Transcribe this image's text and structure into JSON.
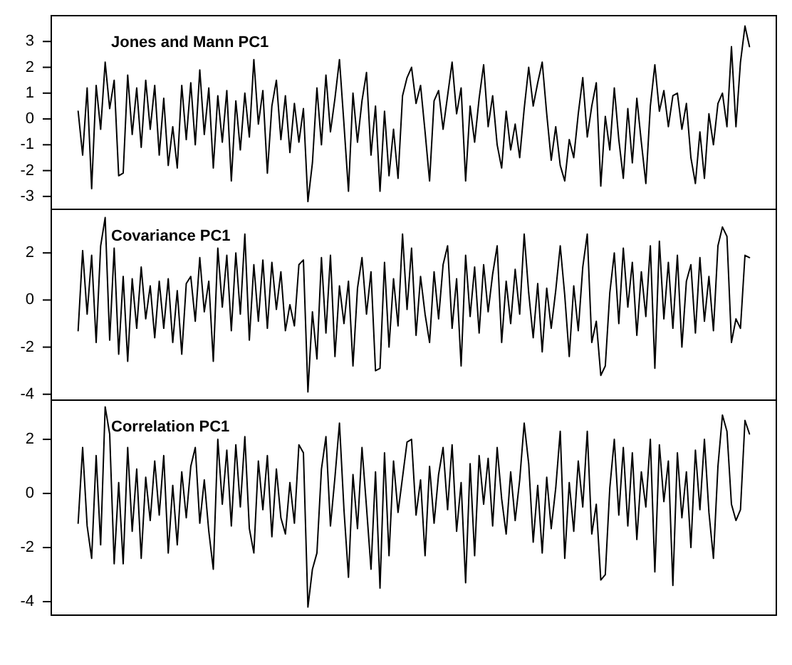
{
  "chart_data": [
    {
      "type": "line",
      "title": "Jones and Mann PC1",
      "tick_labels": "y",
      "ylim": [
        -3.5,
        4.0
      ],
      "yticks": [
        -3,
        -2,
        -1,
        0,
        1,
        2,
        3
      ],
      "categories": [
        null,
        null,
        null,
        null,
        null,
        null,
        null,
        null,
        null,
        null,
        null,
        null,
        null,
        null,
        null,
        null,
        null,
        null,
        null,
        null,
        null,
        null,
        null,
        null,
        null,
        null,
        null,
        null,
        null,
        null,
        null,
        null,
        null,
        null,
        null,
        null,
        null,
        null,
        null,
        null,
        null,
        null,
        null,
        null,
        null,
        null,
        null,
        null,
        null,
        null,
        null,
        null,
        null,
        null,
        null,
        null,
        null,
        null,
        null,
        null,
        null,
        null,
        null,
        null,
        null,
        null,
        null,
        null,
        null,
        null,
        null,
        null,
        null,
        null,
        null,
        null,
        null,
        null,
        null,
        null,
        null,
        null,
        null,
        null,
        null,
        null,
        null,
        null,
        null,
        null,
        null,
        null,
        null,
        null,
        null,
        null,
        null,
        null,
        null,
        null,
        null,
        null,
        null,
        null,
        null,
        null,
        null,
        null,
        null,
        null,
        null,
        null,
        null,
        null,
        null,
        null,
        null,
        null,
        null,
        null,
        null,
        null,
        null,
        null,
        null,
        null,
        null,
        null,
        null,
        null,
        null,
        null,
        null,
        null,
        null,
        null,
        null,
        null,
        null,
        null,
        null,
        null,
        null,
        null,
        null,
        null,
        null,
        null,
        null,
        null
      ],
      "series": [
        {
          "color": "#000000",
          "values": [
            0.3,
            -1.4,
            1.2,
            -2.7,
            1.3,
            -0.4,
            2.2,
            0.4,
            1.5,
            -2.2,
            -2.1,
            1.7,
            -0.6,
            1.2,
            -1.1,
            1.5,
            -0.4,
            1.3,
            -1.4,
            0.8,
            -1.8,
            -0.3,
            -1.9,
            1.3,
            -0.8,
            1.4,
            -1.0,
            1.9,
            -0.6,
            1.2,
            -1.9,
            0.9,
            -0.9,
            1.1,
            -2.4,
            0.7,
            -1.2,
            1.0,
            -0.7,
            2.3,
            -0.2,
            1.1,
            -2.1,
            0.5,
            1.5,
            -0.8,
            0.9,
            -1.3,
            0.6,
            -0.9,
            0.4,
            -3.2,
            -1.7,
            1.2,
            -1.0,
            1.7,
            -0.5,
            0.8,
            2.3,
            -0.2,
            -2.8,
            1.0,
            -0.9,
            0.7,
            1.8,
            -1.4,
            0.5,
            -2.8,
            0.3,
            -2.2,
            -0.4,
            -2.3,
            0.9,
            1.6,
            2.0,
            0.6,
            1.3,
            -0.5,
            -2.4,
            0.7,
            1.1,
            -0.4,
            0.9,
            2.2,
            0.2,
            1.2,
            -2.4,
            0.5,
            -0.9,
            0.8,
            2.1,
            -0.3,
            0.9,
            -1.0,
            -1.9,
            0.3,
            -1.2,
            -0.2,
            -1.5,
            0.4,
            2.0,
            0.5,
            1.4,
            2.2,
            0.2,
            -1.6,
            -0.3,
            -1.8,
            -2.4,
            -0.8,
            -1.5,
            0.2,
            1.6,
            -0.7,
            0.5,
            1.4,
            -2.6,
            0.1,
            -1.2,
            1.2,
            -0.8,
            -2.3,
            0.4,
            -1.7,
            0.8,
            -0.9,
            -2.5,
            0.5,
            2.1,
            0.3,
            1.1,
            -0.3,
            0.9,
            1.0,
            -0.4,
            0.6,
            -1.5,
            -2.5,
            -0.5,
            -2.3,
            0.2,
            -1.0,
            0.6,
            1.0,
            -0.3,
            2.8,
            -0.3,
            2.2,
            3.6,
            2.8
          ]
        }
      ]
    },
    {
      "type": "line",
      "title": "Covariance PC1",
      "tick_labels": "y",
      "ylim": [
        -4.25,
        3.85
      ],
      "yticks": [
        -4,
        -2,
        0,
        2
      ],
      "categories": [
        null,
        null,
        null,
        null,
        null,
        null,
        null,
        null,
        null,
        null,
        null,
        null,
        null,
        null,
        null,
        null,
        null,
        null,
        null,
        null,
        null,
        null,
        null,
        null,
        null,
        null,
        null,
        null,
        null,
        null,
        null,
        null,
        null,
        null,
        null,
        null,
        null,
        null,
        null,
        null,
        null,
        null,
        null,
        null,
        null,
        null,
        null,
        null,
        null,
        null,
        null,
        null,
        null,
        null,
        null,
        null,
        null,
        null,
        null,
        null,
        null,
        null,
        null,
        null,
        null,
        null,
        null,
        null,
        null,
        null,
        null,
        null,
        null,
        null,
        null,
        null,
        null,
        null,
        null,
        null,
        null,
        null,
        null,
        null,
        null,
        null,
        null,
        null,
        null,
        null,
        null,
        null,
        null,
        null,
        null,
        null,
        null,
        null,
        null,
        null,
        null,
        null,
        null,
        null,
        null,
        null,
        null,
        null,
        null,
        null,
        null,
        null,
        null,
        null,
        null,
        null,
        null,
        null,
        null,
        null,
        null,
        null,
        null,
        null,
        null,
        null,
        null,
        null,
        null,
        null,
        null,
        null,
        null,
        null,
        null,
        null,
        null,
        null,
        null,
        null,
        null,
        null,
        null,
        null,
        null,
        null,
        null,
        null,
        null,
        null
      ],
      "series": [
        {
          "color": "#000000",
          "values": [
            -1.3,
            2.1,
            -0.6,
            1.9,
            -1.8,
            2.3,
            3.5,
            -1.7,
            2.2,
            -2.3,
            1.0,
            -2.6,
            0.9,
            -1.2,
            1.4,
            -0.8,
            0.6,
            -1.6,
            0.8,
            -1.2,
            0.9,
            -1.8,
            0.4,
            -2.3,
            0.7,
            1.0,
            -0.9,
            1.8,
            -0.5,
            0.8,
            -2.6,
            2.2,
            -0.3,
            1.9,
            -1.3,
            2.0,
            -0.6,
            2.8,
            -1.7,
            1.5,
            -0.9,
            1.7,
            -1.2,
            1.6,
            -0.4,
            1.2,
            -1.3,
            -0.2,
            -1.1,
            1.5,
            1.7,
            -3.9,
            -0.5,
            -2.5,
            1.8,
            -1.4,
            1.9,
            -2.4,
            0.6,
            -1.0,
            0.8,
            -2.8,
            0.5,
            1.8,
            -0.6,
            1.2,
            -3.0,
            -2.9,
            1.6,
            -2.0,
            0.9,
            -1.1,
            2.8,
            -0.4,
            2.2,
            -1.5,
            1.0,
            -0.6,
            -1.8,
            1.2,
            -0.8,
            1.5,
            2.3,
            -1.2,
            0.9,
            -2.8,
            1.9,
            -0.7,
            1.4,
            -1.4,
            1.5,
            -0.5,
            1.1,
            2.3,
            -1.8,
            0.8,
            -1.0,
            1.3,
            -0.6,
            2.8,
            0.3,
            -1.6,
            0.7,
            -2.2,
            0.5,
            -1.2,
            0.4,
            2.3,
            0.2,
            -2.4,
            0.6,
            -1.3,
            1.4,
            2.8,
            -1.8,
            -0.9,
            -3.2,
            -2.8,
            0.3,
            2.0,
            -1.0,
            2.2,
            -0.3,
            1.6,
            -1.5,
            1.2,
            -0.7,
            2.3,
            -2.9,
            2.5,
            -0.8,
            1.6,
            -1.2,
            1.9,
            -2.0,
            0.8,
            1.5,
            -1.4,
            1.8,
            -0.9,
            1.0,
            -1.3,
            2.3,
            3.1,
            2.7,
            -1.8,
            -0.8,
            -1.2,
            1.9,
            1.8
          ]
        }
      ]
    },
    {
      "type": "line",
      "title": "Correlation PC1",
      "tick_labels": "y",
      "ylim": [
        -4.5,
        3.45
      ],
      "yticks": [
        -4,
        -2,
        0,
        2
      ],
      "categories": [
        null,
        null,
        null,
        null,
        null,
        null,
        null,
        null,
        null,
        null,
        null,
        null,
        null,
        null,
        null,
        null,
        null,
        null,
        null,
        null,
        null,
        null,
        null,
        null,
        null,
        null,
        null,
        null,
        null,
        null,
        null,
        null,
        null,
        null,
        null,
        null,
        null,
        null,
        null,
        null,
        null,
        null,
        null,
        null,
        null,
        null,
        null,
        null,
        null,
        null,
        null,
        null,
        null,
        null,
        null,
        null,
        null,
        null,
        null,
        null,
        null,
        null,
        null,
        null,
        null,
        null,
        null,
        null,
        null,
        null,
        null,
        null,
        null,
        null,
        null,
        null,
        null,
        null,
        null,
        null,
        null,
        null,
        null,
        null,
        null,
        null,
        null,
        null,
        null,
        null,
        null,
        null,
        null,
        null,
        null,
        null,
        null,
        null,
        null,
        null,
        null,
        null,
        null,
        null,
        null,
        null,
        null,
        null,
        null,
        null,
        null,
        null,
        null,
        null,
        null,
        null,
        null,
        null,
        null,
        null,
        null,
        null,
        null,
        null,
        null,
        null,
        null,
        null,
        null,
        null,
        null,
        null,
        null,
        null,
        null,
        null,
        null,
        null,
        null,
        null,
        null,
        null,
        null,
        null,
        null,
        null,
        null,
        null,
        null,
        null
      ],
      "series": [
        {
          "color": "#000000",
          "values": [
            -1.1,
            1.7,
            -1.2,
            -2.4,
            1.4,
            -1.9,
            3.2,
            2.2,
            -2.6,
            0.4,
            -2.6,
            1.7,
            -1.4,
            0.9,
            -2.4,
            0.6,
            -1.0,
            1.2,
            -0.8,
            1.4,
            -2.2,
            0.3,
            -1.9,
            0.8,
            -0.9,
            1.0,
            1.7,
            -1.1,
            0.5,
            -1.4,
            -2.8,
            2.0,
            -0.4,
            1.6,
            -1.2,
            1.8,
            -0.5,
            2.1,
            -1.3,
            -2.2,
            1.2,
            -0.6,
            1.4,
            -1.6,
            0.9,
            -0.9,
            -1.5,
            0.4,
            -1.1,
            1.8,
            1.5,
            -4.2,
            -2.8,
            -2.2,
            0.9,
            2.1,
            -1.2,
            0.6,
            2.6,
            -0.6,
            -3.1,
            0.7,
            -1.3,
            1.7,
            -0.5,
            -2.8,
            0.8,
            -3.5,
            1.5,
            -2.3,
            1.2,
            -0.7,
            0.6,
            1.9,
            2.0,
            -0.8,
            0.5,
            -2.3,
            1.0,
            -1.1,
            0.7,
            1.7,
            -0.6,
            1.8,
            -1.4,
            0.4,
            -3.3,
            1.1,
            -2.3,
            1.4,
            -0.4,
            1.3,
            -1.2,
            1.7,
            -0.2,
            -1.5,
            0.8,
            -1.0,
            0.5,
            2.6,
            1.1,
            -1.8,
            0.3,
            -2.2,
            0.6,
            -1.3,
            0.2,
            2.3,
            -2.4,
            0.4,
            -1.4,
            1.2,
            -0.5,
            2.3,
            -1.5,
            -0.4,
            -3.2,
            -3.0,
            0.2,
            2.0,
            -0.8,
            1.7,
            -1.2,
            1.5,
            -1.7,
            0.8,
            -0.5,
            2.0,
            -2.9,
            1.8,
            -0.3,
            1.2,
            -3.4,
            1.5,
            -0.9,
            0.8,
            -2.0,
            1.6,
            -0.6,
            2.0,
            -0.7,
            -2.4,
            1.0,
            2.9,
            2.3,
            -0.4,
            -1.0,
            -0.6,
            2.7,
            2.2
          ]
        }
      ]
    }
  ]
}
